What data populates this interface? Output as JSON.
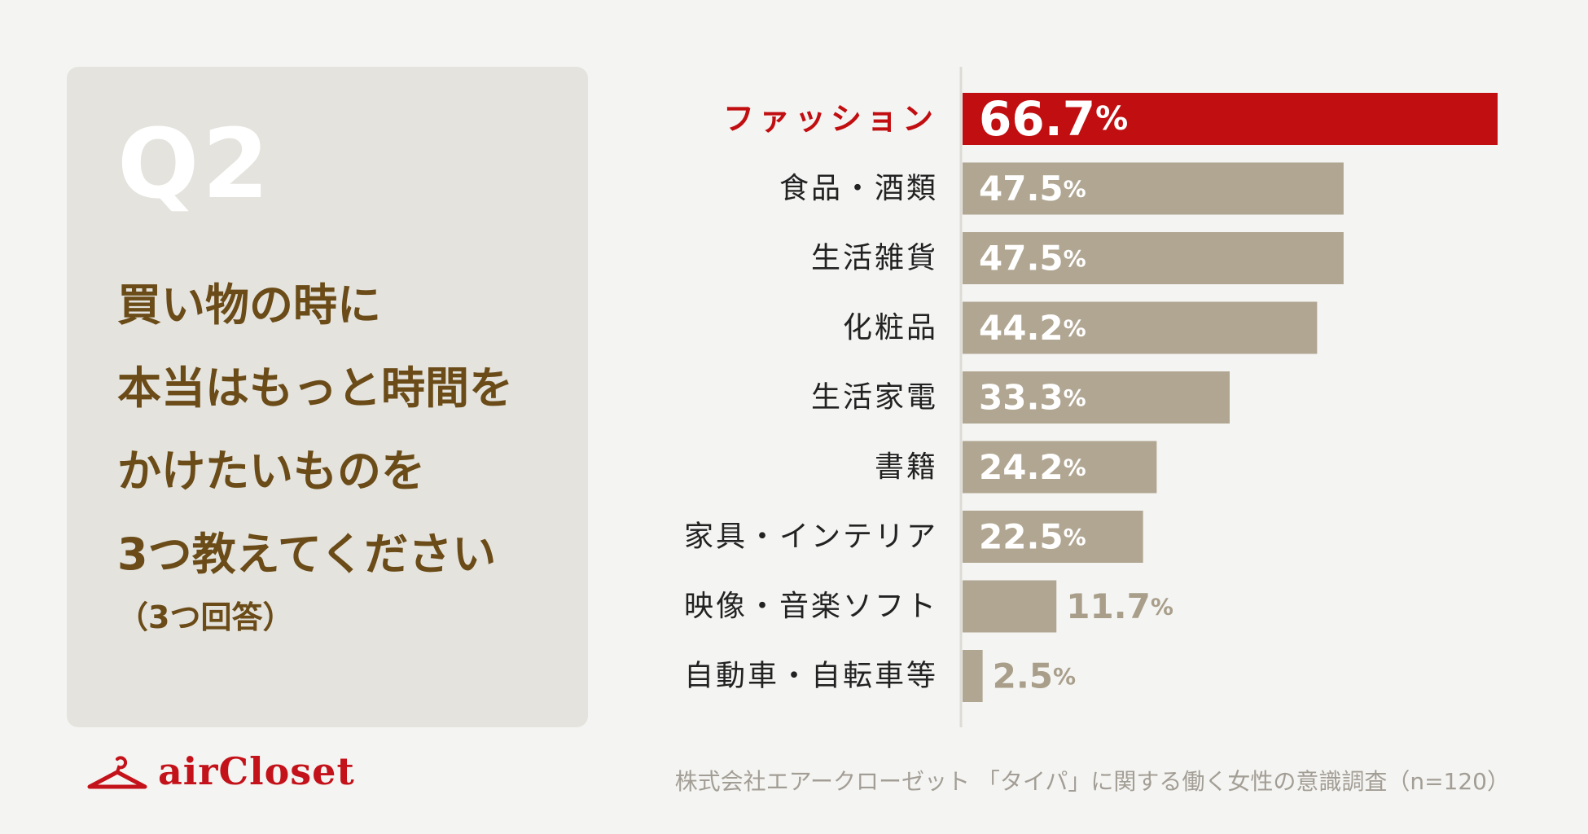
{
  "question": {
    "number": "Q2",
    "lines": [
      "買い物の時に",
      "本当はもっと時間を",
      "かけたいものを",
      "3つ教えてください"
    ],
    "note": "（3つ回答）"
  },
  "chart_data": {
    "type": "bar",
    "orientation": "horizontal",
    "categories": [
      "ファッション",
      "食品・酒類",
      "生活雑貨",
      "化粧品",
      "生活家電",
      "書籍",
      "家具・インテリア",
      "映像・音楽ソフト",
      "自動車・自転車等"
    ],
    "values": [
      66.7,
      47.5,
      47.5,
      44.2,
      33.3,
      24.2,
      22.5,
      11.7,
      2.5
    ],
    "value_suffix": "%",
    "highlight_index": 0,
    "xlim": [
      0,
      100
    ],
    "colors": {
      "highlight": "#c10e10",
      "bar": "#b1a692",
      "label": "#222222",
      "value_inside": "#ffffff",
      "value_outside": "#a89e8a",
      "axis": "#dddbd5"
    }
  },
  "brand": {
    "name": "airCloset",
    "icon": "hanger-icon",
    "color": "#c4121a"
  },
  "source": "株式会社エアークローゼット 「タイパ」に関する働く女性の意識調査（n=120）"
}
